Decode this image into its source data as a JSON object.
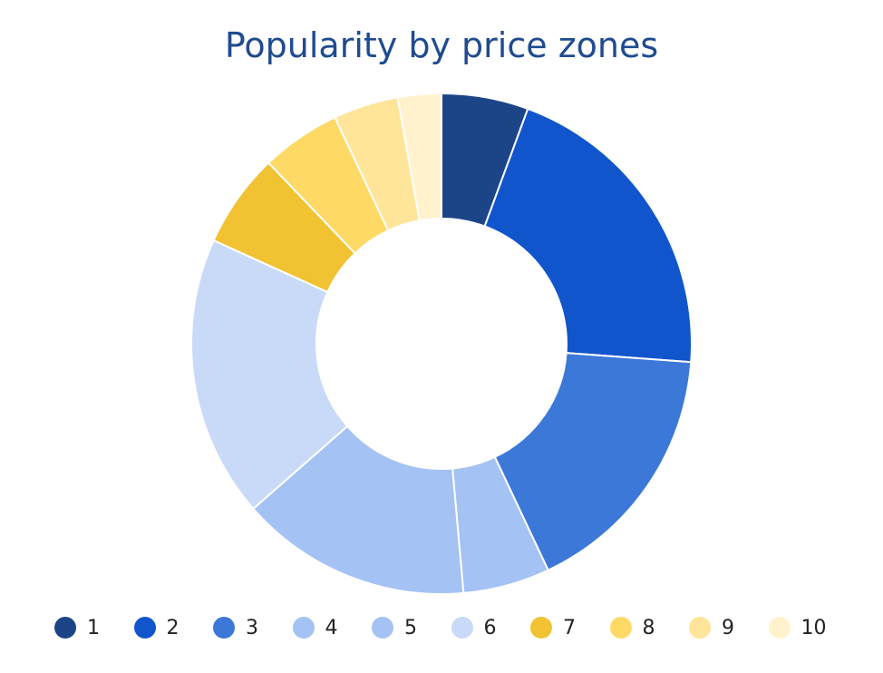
{
  "chart_data": {
    "type": "pie",
    "title": "Popularity by price zones",
    "hole": 0.5,
    "categories": [
      "1",
      "2",
      "3",
      "4",
      "5",
      "6",
      "7",
      "8",
      "9",
      "10"
    ],
    "values": [
      6.0,
      22.0,
      18.0,
      6.0,
      16.0,
      19.5,
      6.5,
      5.5,
      4.5,
      3.0
    ],
    "colors": [
      "#1c4587",
      "#1155cc",
      "#3c78d8",
      "#a4c2f4",
      "#a4c2f4",
      "#c9daf8",
      "#f1c232",
      "#ffd966",
      "#ffe599",
      "#fff2cc"
    ],
    "legend_position": "bottom"
  }
}
